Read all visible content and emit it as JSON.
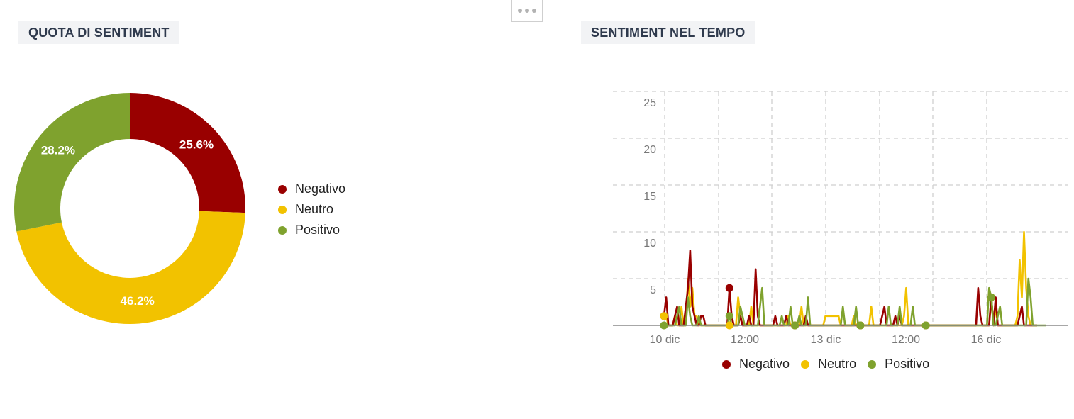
{
  "toolbar": {
    "menu_icon": "more-dots-icon"
  },
  "panels": {
    "left_title": "QUOTA DI SENTIMENT",
    "right_title": "SENTIMENT NEL TEMPO"
  },
  "colors": {
    "negativo": "#990000",
    "neutro": "#f2c200",
    "positivo": "#7fa22e"
  },
  "chart_data": [
    {
      "type": "pie",
      "donut": true,
      "labels": [
        "Negativo",
        "Neutro",
        "Positivo"
      ],
      "values": [
        25.6,
        46.2,
        28.2
      ],
      "value_labels": [
        "25.6%",
        "46.2%",
        "28.2%"
      ],
      "colors": [
        "#990000",
        "#f2c200",
        "#7fa22e"
      ],
      "legend_position": "right"
    },
    {
      "type": "line",
      "ylim": [
        0,
        25
      ],
      "yticks": [
        5,
        10,
        15,
        20,
        25
      ],
      "ytick_labels": [
        "5",
        "10",
        "15",
        "20",
        "25"
      ],
      "xtick_labels": [
        "10 dic",
        "12:00",
        "13 dic",
        "12:00",
        "16 dic"
      ],
      "grid": true,
      "legend_position": "bottom",
      "series": [
        {
          "name": "Negativo",
          "color": "#990000",
          "values": [
            1,
            3,
            0,
            0,
            0,
            1,
            2,
            0,
            0,
            0,
            2,
            4,
            8,
            2,
            1,
            0,
            0,
            1,
            1,
            0,
            0,
            0,
            0,
            0,
            0,
            0,
            0,
            0,
            0,
            0,
            4,
            1,
            0,
            0,
            0,
            1,
            0,
            0,
            0,
            1,
            0,
            0,
            6,
            1,
            0,
            0,
            0,
            0,
            0,
            0,
            0,
            1,
            0,
            0,
            0,
            0,
            1,
            0,
            0,
            0,
            0,
            0,
            0,
            0,
            0,
            1,
            0,
            0,
            0,
            0,
            0,
            0,
            0,
            0,
            0,
            0,
            0,
            0,
            0,
            0,
            0,
            0,
            0,
            0,
            0,
            0,
            0,
            0,
            0,
            0,
            0,
            0,
            0,
            0,
            0,
            0,
            0,
            0,
            0,
            0,
            1,
            2,
            0,
            0,
            0,
            0,
            1,
            0,
            1,
            0,
            0,
            0,
            0,
            0,
            0,
            0,
            0,
            0,
            0,
            0,
            0,
            0,
            0,
            0,
            0,
            0,
            0,
            0,
            0,
            0,
            0,
            0,
            0,
            0,
            0,
            0,
            0,
            0,
            0,
            0,
            0,
            0,
            0,
            0,
            4,
            1,
            0,
            0,
            0,
            0,
            3,
            0,
            3,
            0,
            0,
            0,
            0,
            0,
            0,
            0,
            0,
            0,
            0,
            1,
            2,
            0,
            0,
            0,
            0,
            0,
            0,
            0
          ]
        },
        {
          "name": "Neutro",
          "color": "#f2c200",
          "values": [
            1,
            1,
            0,
            0,
            0,
            1,
            0,
            0,
            2,
            0,
            0,
            5,
            2,
            4,
            1,
            1,
            0,
            0,
            0,
            0,
            0,
            0,
            0,
            0,
            0,
            0,
            0,
            0,
            0,
            0,
            0,
            1,
            0,
            0,
            3,
            1,
            0,
            0,
            0,
            0,
            2,
            0,
            0,
            0,
            0,
            0,
            0,
            0,
            0,
            0,
            0,
            0,
            0,
            0,
            0,
            0,
            0,
            1,
            0,
            0,
            0,
            0,
            0,
            2,
            0,
            0,
            0,
            0,
            0,
            0,
            0,
            0,
            0,
            0,
            1,
            1,
            1,
            1,
            1,
            1,
            1,
            0,
            0,
            0,
            0,
            0,
            0,
            1,
            0,
            0,
            0,
            0,
            0,
            0,
            0,
            2,
            0,
            0,
            0,
            0,
            0,
            0,
            0,
            0,
            0,
            0,
            0,
            0,
            0,
            0,
            1,
            4,
            0,
            0,
            0,
            0,
            0,
            0,
            0,
            0,
            0,
            0,
            0,
            0,
            0,
            0,
            0,
            0,
            0,
            0,
            0,
            0,
            0,
            0,
            0,
            0,
            0,
            0,
            0,
            0,
            0,
            0,
            0,
            0,
            0,
            0,
            0,
            0,
            0,
            0,
            3,
            0,
            2,
            0,
            0,
            0,
            0,
            0,
            0,
            0,
            0,
            0,
            1,
            7,
            3,
            10,
            4,
            1,
            0,
            0,
            0,
            0
          ]
        },
        {
          "name": "Positivo",
          "color": "#7fa22e",
          "values": [
            0,
            0,
            0,
            0,
            0,
            0,
            1,
            2,
            0,
            0,
            0,
            3,
            1,
            0,
            0,
            0,
            1,
            0,
            0,
            0,
            0,
            0,
            0,
            0,
            0,
            0,
            0,
            0,
            0,
            0,
            1,
            0,
            0,
            0,
            0,
            2,
            1,
            0,
            0,
            0,
            0,
            0,
            0,
            0,
            2,
            4,
            0,
            0,
            0,
            0,
            0,
            0,
            0,
            0,
            1,
            0,
            0,
            0,
            2,
            0,
            0,
            0,
            1,
            0,
            0,
            0,
            3,
            0,
            0,
            0,
            0,
            0,
            0,
            0,
            0,
            0,
            0,
            0,
            0,
            0,
            0,
            0,
            2,
            0,
            0,
            0,
            0,
            0,
            2,
            0,
            0,
            0,
            0,
            0,
            0,
            0,
            0,
            0,
            0,
            0,
            0,
            0,
            0,
            2,
            0,
            0,
            0,
            0,
            2,
            0,
            0,
            0,
            0,
            0,
            2,
            0,
            0,
            0,
            0,
            0,
            0,
            0,
            0,
            0,
            0,
            0,
            0,
            0,
            0,
            0,
            0,
            0,
            0,
            0,
            0,
            0,
            0,
            0,
            0,
            0,
            0,
            0,
            0,
            0,
            0,
            0,
            0,
            0,
            0,
            4,
            3,
            0,
            0,
            1,
            2,
            0,
            0,
            0,
            0,
            0,
            0,
            0,
            0,
            0,
            0,
            0,
            0,
            5,
            3,
            0,
            0,
            0,
            0,
            0,
            0,
            0
          ]
        }
      ]
    }
  ]
}
